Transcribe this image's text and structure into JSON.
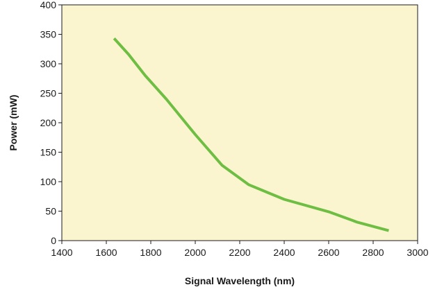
{
  "chart_data": {
    "type": "line",
    "title": "",
    "xlabel": "Signal Wavelength (nm)",
    "ylabel": "Power (mW)",
    "xlim": [
      1400,
      3000
    ],
    "ylim": [
      0,
      400
    ],
    "x_ticks": [
      1400,
      1600,
      1800,
      2000,
      2200,
      2400,
      2600,
      2800,
      3000
    ],
    "y_ticks": [
      0,
      50,
      100,
      150,
      200,
      250,
      300,
      350,
      400
    ],
    "x_tick_labels": [
      "1400",
      "1600",
      "1800",
      "2000",
      "2200",
      "2400",
      "2600",
      "2800",
      "3000"
    ],
    "y_tick_labels": [
      "0",
      "50",
      "100",
      "150",
      "200",
      "250",
      "300",
      "350",
      "400"
    ],
    "grid": false,
    "legend": "none",
    "series": [
      {
        "x": [
          1635,
          1700,
          1775,
          1870,
          2000,
          2120,
          2240,
          2400,
          2600,
          2730,
          2870
        ],
        "y": [
          343,
          316,
          280,
          240,
          180,
          128,
          95,
          70,
          49,
          31,
          17
        ],
        "color": "#6fbe44"
      }
    ],
    "colors": {
      "plot_background": "#fbf5cf",
      "line": "#6fbe44",
      "axis": "#1a1a1a"
    }
  }
}
